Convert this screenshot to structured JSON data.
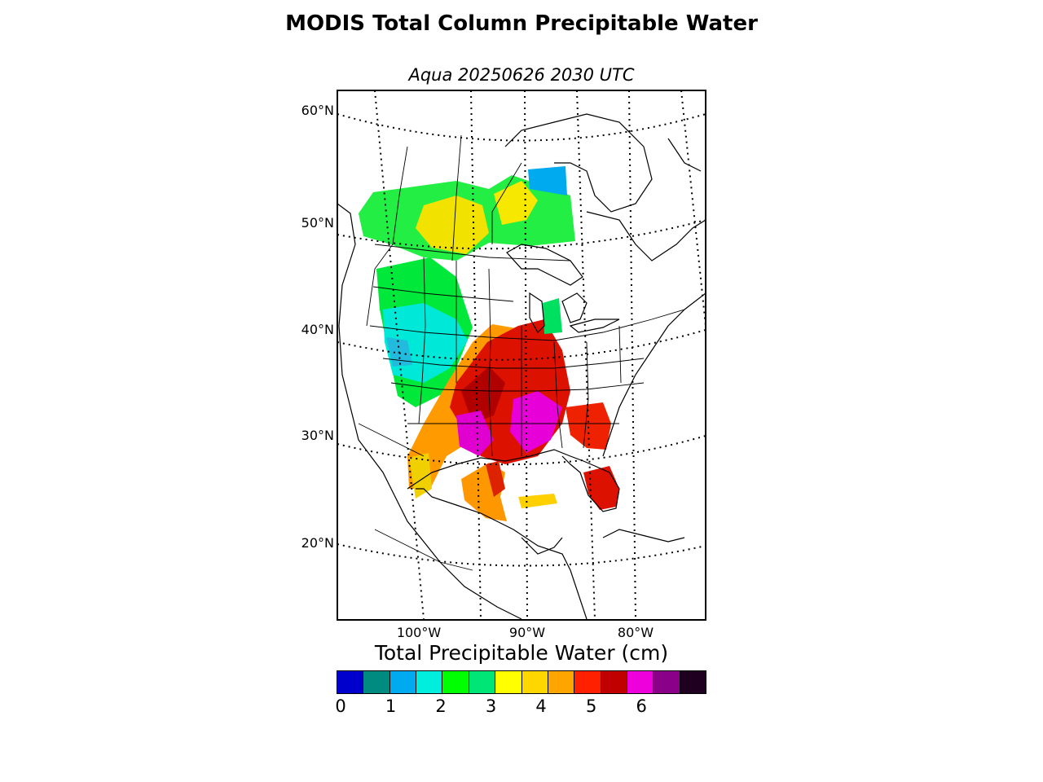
{
  "title": "MODIS Total Column Precipitable Water",
  "subtitle": "Aqua 20250626 2030 UTC",
  "map": {
    "projection": "conic",
    "lat_labels": [
      "60°N",
      "50°N",
      "40°N",
      "30°N",
      "20°N"
    ],
    "lon_labels": [
      "100°W",
      "90°W",
      "80°W"
    ],
    "gridlines": "dotted"
  },
  "colorbar": {
    "title": "Total Precipitable Water (cm)",
    "ticks": [
      "0",
      "1",
      "2",
      "3",
      "4",
      "5",
      "6"
    ],
    "range": [
      0,
      7
    ],
    "step": 0.5,
    "colors": [
      "#0000cc",
      "#008b80",
      "#00aaee",
      "#00eedd",
      "#00ff00",
      "#00e676",
      "#ffff00",
      "#ffd700",
      "#ffa500",
      "#ff2000",
      "#c00000",
      "#ee00dd",
      "#8b0088",
      "#200020"
    ]
  }
}
